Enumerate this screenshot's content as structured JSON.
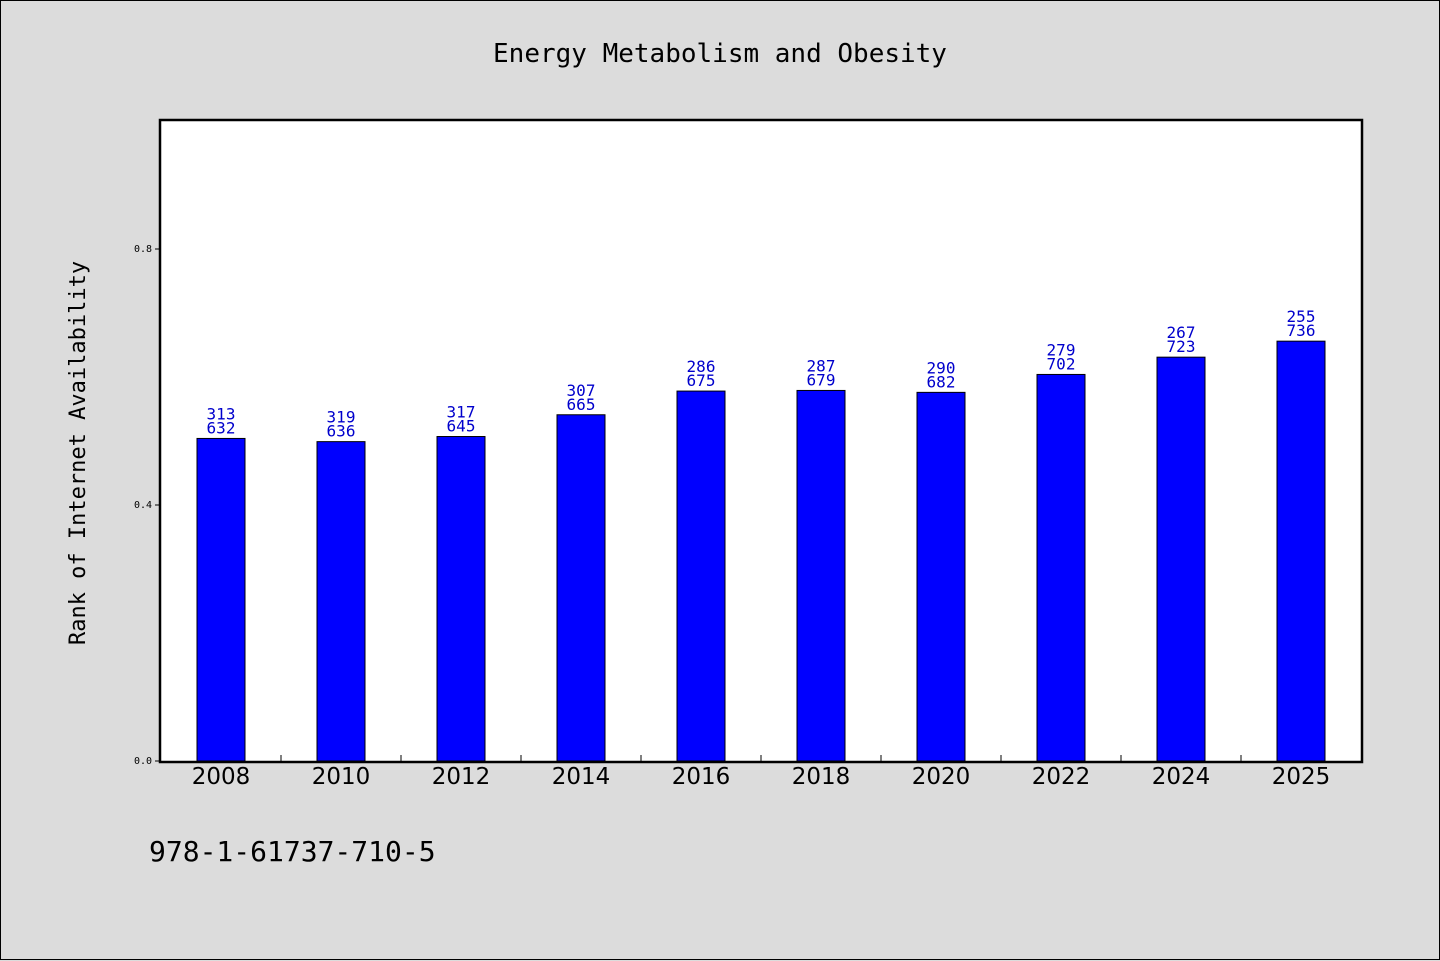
{
  "chart_data": {
    "type": "bar",
    "title": "Energy Metabolism and Obesity",
    "xlabel": "",
    "ylabel": "Rank of Internet Availability",
    "categories": [
      "2008",
      "2010",
      "2012",
      "2014",
      "2016",
      "2018",
      "2020",
      "2022",
      "2024",
      "2025"
    ],
    "values": [
      0.504,
      0.499,
      0.507,
      0.541,
      0.578,
      0.579,
      0.576,
      0.604,
      0.631,
      0.656
    ],
    "labels_top": [
      "313",
      "319",
      "317",
      "307",
      "286",
      "287",
      "290",
      "279",
      "267",
      "255"
    ],
    "labels_bottom": [
      "632",
      "636",
      "645",
      "665",
      "675",
      "679",
      "682",
      "702",
      "723",
      "736"
    ],
    "yticks": [
      0.0,
      0.4,
      0.8
    ],
    "ytick_labels": [
      "0.0",
      "0.4",
      "0.8"
    ],
    "ylim": [
      0,
      1.0
    ],
    "grid": false,
    "legend": "none",
    "bar_color": "#0000ff",
    "label_color": "#0000cc"
  },
  "footnote": "978-1-61737-710-5"
}
